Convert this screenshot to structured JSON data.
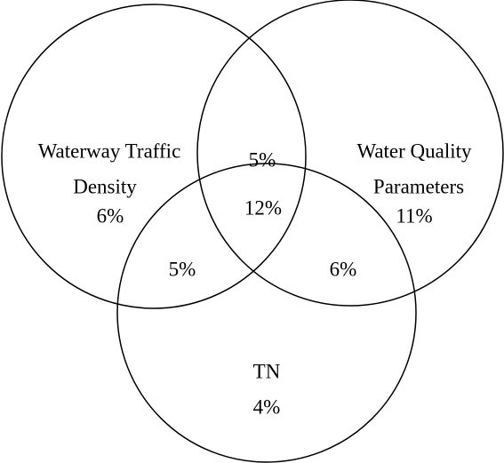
{
  "sets": [
    {
      "lines": [
        "Waterway Traffic",
        "Density"
      ],
      "value": "6%"
    },
    {
      "lines": [
        "Water Quality",
        "Parameters"
      ],
      "value": "11%"
    },
    {
      "lines": [
        "TN"
      ],
      "value": "4%"
    }
  ],
  "overlaps": {
    "traffic_quality": "5%",
    "all": "12%",
    "traffic_tn": "5%",
    "quality_tn": "6%"
  }
}
